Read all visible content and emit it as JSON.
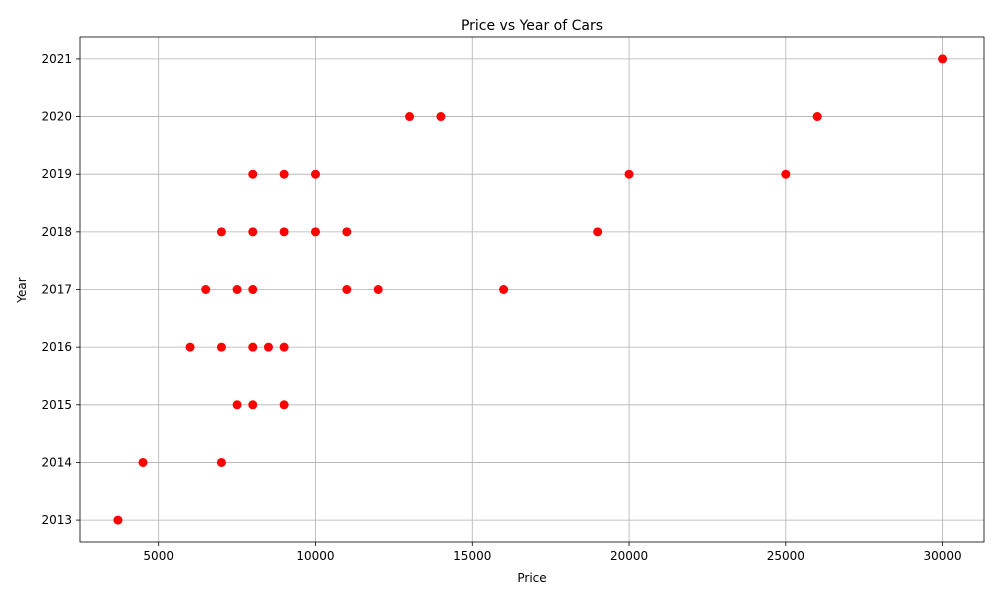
{
  "chart_data": {
    "type": "scatter",
    "title": "Price vs Year of Cars",
    "xlabel": "Price",
    "ylabel": "Year",
    "xlim": [
      2490,
      31320
    ],
    "ylim": [
      2012.62,
      2021.38
    ],
    "xticks": [
      5000,
      10000,
      15000,
      20000,
      25000,
      30000
    ],
    "yticks": [
      2013,
      2014,
      2015,
      2016,
      2017,
      2018,
      2019,
      2020,
      2021
    ],
    "grid": true,
    "marker_color": "#ff0000",
    "points": [
      {
        "x": 3700,
        "y": 2013
      },
      {
        "x": 4500,
        "y": 2014
      },
      {
        "x": 7000,
        "y": 2014
      },
      {
        "x": 7500,
        "y": 2015
      },
      {
        "x": 8000,
        "y": 2015
      },
      {
        "x": 9000,
        "y": 2015
      },
      {
        "x": 6000,
        "y": 2016
      },
      {
        "x": 7000,
        "y": 2016
      },
      {
        "x": 8000,
        "y": 2016
      },
      {
        "x": 8500,
        "y": 2016
      },
      {
        "x": 9000,
        "y": 2016
      },
      {
        "x": 6500,
        "y": 2017
      },
      {
        "x": 7500,
        "y": 2017
      },
      {
        "x": 8000,
        "y": 2017
      },
      {
        "x": 11000,
        "y": 2017
      },
      {
        "x": 12000,
        "y": 2017
      },
      {
        "x": 16000,
        "y": 2017
      },
      {
        "x": 7000,
        "y": 2018
      },
      {
        "x": 8000,
        "y": 2018
      },
      {
        "x": 9000,
        "y": 2018
      },
      {
        "x": 10000,
        "y": 2018
      },
      {
        "x": 11000,
        "y": 2018
      },
      {
        "x": 19000,
        "y": 2018
      },
      {
        "x": 8000,
        "y": 2019
      },
      {
        "x": 9000,
        "y": 2019
      },
      {
        "x": 10000,
        "y": 2019
      },
      {
        "x": 20000,
        "y": 2019
      },
      {
        "x": 25000,
        "y": 2019
      },
      {
        "x": 13000,
        "y": 2020
      },
      {
        "x": 14000,
        "y": 2020
      },
      {
        "x": 26000,
        "y": 2020
      },
      {
        "x": 30000,
        "y": 2021
      }
    ]
  }
}
